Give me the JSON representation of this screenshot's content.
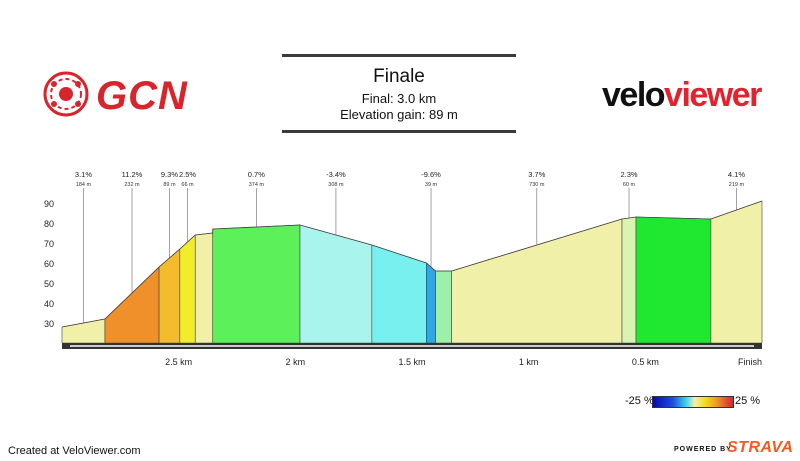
{
  "branding": {
    "left_logo": "GCN",
    "right_logo_part1": "velo",
    "right_logo_part2": "viewer",
    "footer_left": "Created at VeloViewer.com",
    "footer_powered": "POWERED BY",
    "footer_brand": "STRAVA"
  },
  "header": {
    "title": "Finale",
    "line1": "Final: 3.0 km",
    "line2": "Elevation gain: 89 m"
  },
  "legend": {
    "low_label": "-25 %",
    "high_label": "25 %"
  },
  "colors": {
    "logo_red": "#d8242c",
    "strava_orange": "#f45a1e",
    "axis": "#333333"
  },
  "chart_data": {
    "type": "area",
    "ylim": [
      20,
      95
    ],
    "y_ticks": [
      30,
      40,
      50,
      60,
      70,
      80,
      90
    ],
    "xlim": [
      0,
      3.0
    ],
    "x_unit": "km",
    "x_ticks": [
      {
        "value": 0.5,
        "label": "2.5 km"
      },
      {
        "value": 1.0,
        "label": "2 km"
      },
      {
        "value": 1.5,
        "label": "1.5 km"
      },
      {
        "value": 2.0,
        "label": "1 km"
      },
      {
        "value": 2.5,
        "label": "0.5 km"
      },
      {
        "value": 3.0,
        "label": "Finish"
      }
    ],
    "segments": [
      {
        "grade": "3.1%",
        "length": "184 m",
        "x0": 0.0,
        "x1": 0.184,
        "y0": 28,
        "y1": 32,
        "color": "#f0f0a8"
      },
      {
        "grade": "11.2%",
        "length": "232 m",
        "x0": 0.184,
        "x1": 0.416,
        "y0": 32,
        "y1": 58,
        "color": "#f0902a"
      },
      {
        "grade": "9.3%",
        "length": "89 m",
        "x0": 0.416,
        "x1": 0.505,
        "y0": 58,
        "y1": 67,
        "color": "#f4bc2c"
      },
      {
        "grade": "2.5%",
        "length": "66 m",
        "x0": 0.505,
        "x1": 0.571,
        "y0": 67,
        "y1": 74,
        "color": "#f2ec2a"
      },
      {
        "grade": "",
        "length": "",
        "x0": 0.571,
        "x1": 0.646,
        "y0": 74,
        "y1": 75,
        "color": "#f0f0a8"
      },
      {
        "grade": "0.7%",
        "length": "374 m",
        "x0": 0.646,
        "x1": 1.02,
        "y0": 77,
        "y1": 79,
        "color": "#5cf05a"
      },
      {
        "grade": "-3.4%",
        "length": "308 m",
        "x0": 1.02,
        "x1": 1.328,
        "y0": 79,
        "y1": 69,
        "color": "#aaf4ee"
      },
      {
        "grade": "",
        "length": "",
        "x0": 1.328,
        "x1": 1.562,
        "y0": 69,
        "y1": 60,
        "color": "#78f0f0"
      },
      {
        "grade": "-9.6%",
        "length": "39 m",
        "x0": 1.562,
        "x1": 1.601,
        "y0": 60,
        "y1": 56,
        "color": "#2aa8e8"
      },
      {
        "grade": "",
        "length": "",
        "x0": 1.601,
        "x1": 1.67,
        "y0": 56,
        "y1": 56,
        "color": "#9cf0a8"
      },
      {
        "grade": "3.7%",
        "length": "730 m",
        "x0": 1.67,
        "x1": 2.4,
        "y0": 56,
        "y1": 82,
        "color": "#f0f0a8"
      },
      {
        "grade": "2.3%",
        "length": "60 m",
        "x0": 2.4,
        "x1": 2.46,
        "y0": 82,
        "y1": 83,
        "color": "#d8f4b0"
      },
      {
        "grade": "",
        "length": "",
        "x0": 2.46,
        "x1": 2.781,
        "y0": 83,
        "y1": 82,
        "color": "#20e830"
      },
      {
        "grade": "4.1%",
        "length": "219 m",
        "x0": 2.781,
        "x1": 3.0,
        "y0": 82,
        "y1": 91,
        "color": "#f0f0a8"
      }
    ]
  }
}
